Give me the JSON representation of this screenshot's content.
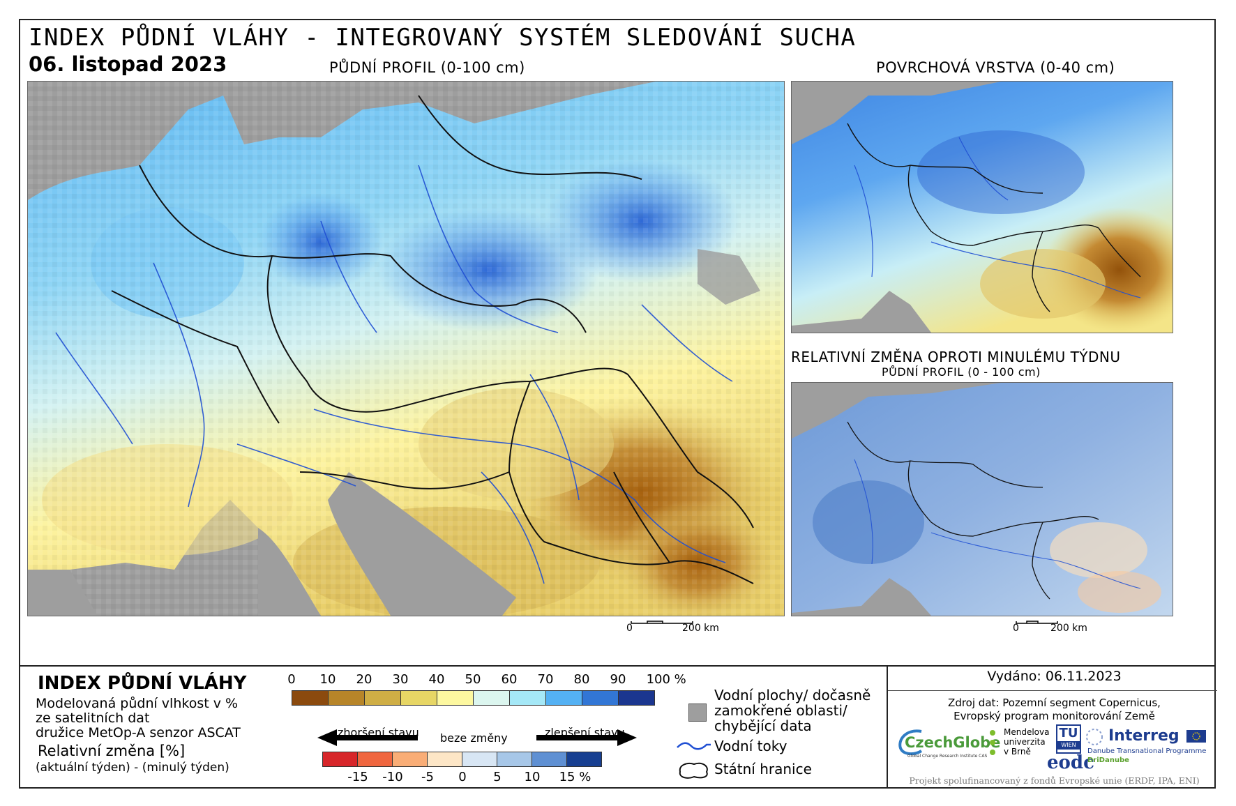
{
  "header": {
    "title": "INDEX PŮDNÍ VLÁHY - INTEGROVANÝ SYSTÉM SLEDOVÁNÍ SUCHA",
    "date": "06. listopad 2023"
  },
  "panels": {
    "main_label": "PŮDNÍ PROFIL (0-100 cm)",
    "surface_label": "POVRCHOVÁ VRSTVA (0-40 cm)",
    "change_label": "RELATIVNÍ ZMĚNA OPROTI MINULÉMU TÝDNU",
    "change_sublabel": "PŮDNÍ PROFIL (0 - 100 cm)"
  },
  "scalebars": {
    "main": {
      "zero": "0",
      "dist": "200 km"
    },
    "small": {
      "zero": "0",
      "dist": "200 km"
    }
  },
  "legend": {
    "title": "INDEX PŮDNÍ VLÁHY",
    "desc_lines": [
      "Modelovaná půdní vlhkost v %",
      "ze satelitních dat",
      "družice MetOp-A senzor ASCAT"
    ],
    "change_title": "Relativní změna [%]",
    "change_desc": "(aktuální týden) - (minulý týden)",
    "index_ticks": [
      "0",
      "10",
      "20",
      "30",
      "40",
      "50",
      "60",
      "70",
      "80",
      "90",
      "100 %"
    ],
    "index_colors": [
      "#8b4a0e",
      "#b78529",
      "#cfae45",
      "#e7d665",
      "#fdf8a0",
      "#dcf6ef",
      "#a5e8f7",
      "#54b1f3",
      "#3276d5",
      "#1b368f"
    ],
    "change_colors": [
      "#d7262a",
      "#f0663f",
      "#f9ad76",
      "#fde6c6",
      "#d8e6f4",
      "#a7c7e8",
      "#5f90d3",
      "#173f91"
    ],
    "change_ticks": [
      "-15",
      "-10",
      "-5",
      "0",
      "5",
      "10",
      "15 %"
    ],
    "worse": "zhoršení stavu",
    "nochange": "beze změny",
    "better": "zlepšení stavu"
  },
  "symbols": {
    "water": [
      "Vodní plochy/ dočasně",
      "zamokřené oblasti/",
      "chybějící data"
    ],
    "rivers": "Vodní toky",
    "borders": "Státní hranice"
  },
  "footer": {
    "issued": "Vydáno: 06.11.2023",
    "source_lines": [
      "Zdroj dat: Pozemní segment Copernicus,",
      "Evropský program monitorování Země"
    ],
    "project": "Projekt spolufinancovaný z fondů Evropské unie (ERDF, IPA, ENI)"
  },
  "logos": {
    "czechglobe": "CzechGlobe",
    "czechglobe_sub": "Global Change Research Institute CAS",
    "mendel": [
      "Mendelova",
      "univerzita",
      "v Brně"
    ],
    "tu": "TU",
    "tu_sub": "WIEN",
    "eodc": "eodc",
    "interreg": "Interreg",
    "interreg_sub": "Danube Transnational Programme",
    "dridanube": "DriDanube"
  },
  "colors": {
    "land_gray": "#9e9e9e",
    "river": "#1f4fd3",
    "border": "#111111"
  }
}
